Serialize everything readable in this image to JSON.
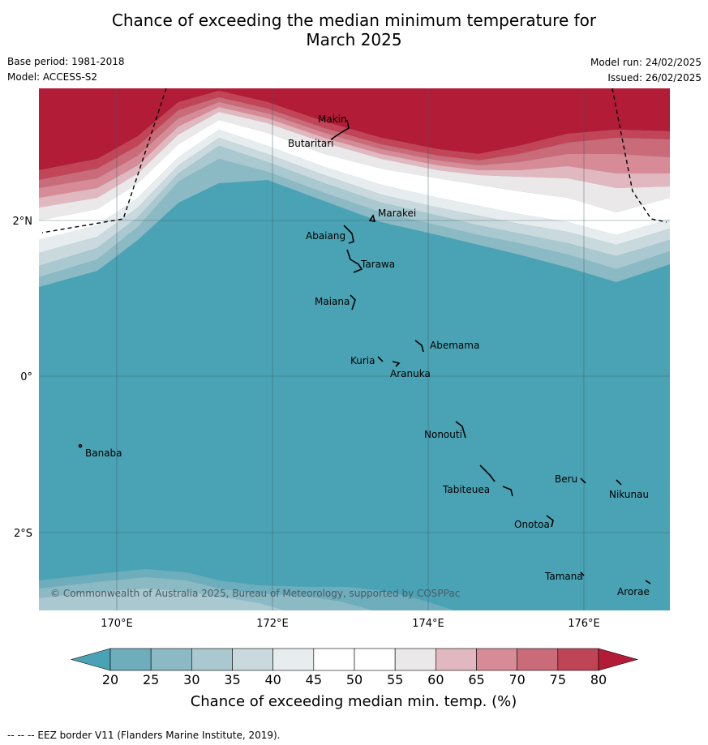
{
  "title_line1": "Chance of exceeding the median minimum temperature for",
  "title_line2": "March 2025",
  "base_period": "Base period: 1981-2018",
  "model": "Model: ACCESS-S2",
  "model_run": "Model run: 24/02/2025",
  "issued": "Issued: 26/02/2025",
  "copyright": "© Commonwealth of Australia 2025, Bureau of Meteorology, supported by COSPPac",
  "lat_labels": [
    "2°N",
    "0°",
    "2°S"
  ],
  "lon_labels": [
    "170°E",
    "172°E",
    "174°E",
    "176°E"
  ],
  "places": {
    "makin": "Makin",
    "butaritari": "Butaritari",
    "marakei": "Marakei",
    "abaiang": "Abaiang",
    "tarawa": "Tarawa",
    "maiana": "Maiana",
    "abemama": "Abemama",
    "kuria": "Kuria",
    "aranuka": "Aranuka",
    "banaba": "Banaba",
    "nonouti": "Nonouti",
    "beru": "Beru",
    "nikunau": "Nikunau",
    "tabiteuea": "Tabiteuea",
    "onotoa": "Onotoa",
    "tamana": "Tamana",
    "arorae": "Arorae"
  },
  "colorbar": {
    "ticks": [
      "20",
      "25",
      "30",
      "35",
      "40",
      "45",
      "50",
      "55",
      "60",
      "65",
      "70",
      "75",
      "80"
    ],
    "colors": [
      "#4aa3b4",
      "#6dadbc",
      "#8bbac5",
      "#a9c8cf",
      "#c9d9dd",
      "#e7edef",
      "#ffffff",
      "#ffffff",
      "#ebe8e9",
      "#e2b8c0",
      "#d68b96",
      "#c96b78",
      "#bf4556",
      "#b31c37"
    ],
    "title": "Chance of exceeding median min. temp. (%)"
  },
  "footer": "-- -- -- EEZ border V11 (Flanders Marine Institute, 2019)."
}
